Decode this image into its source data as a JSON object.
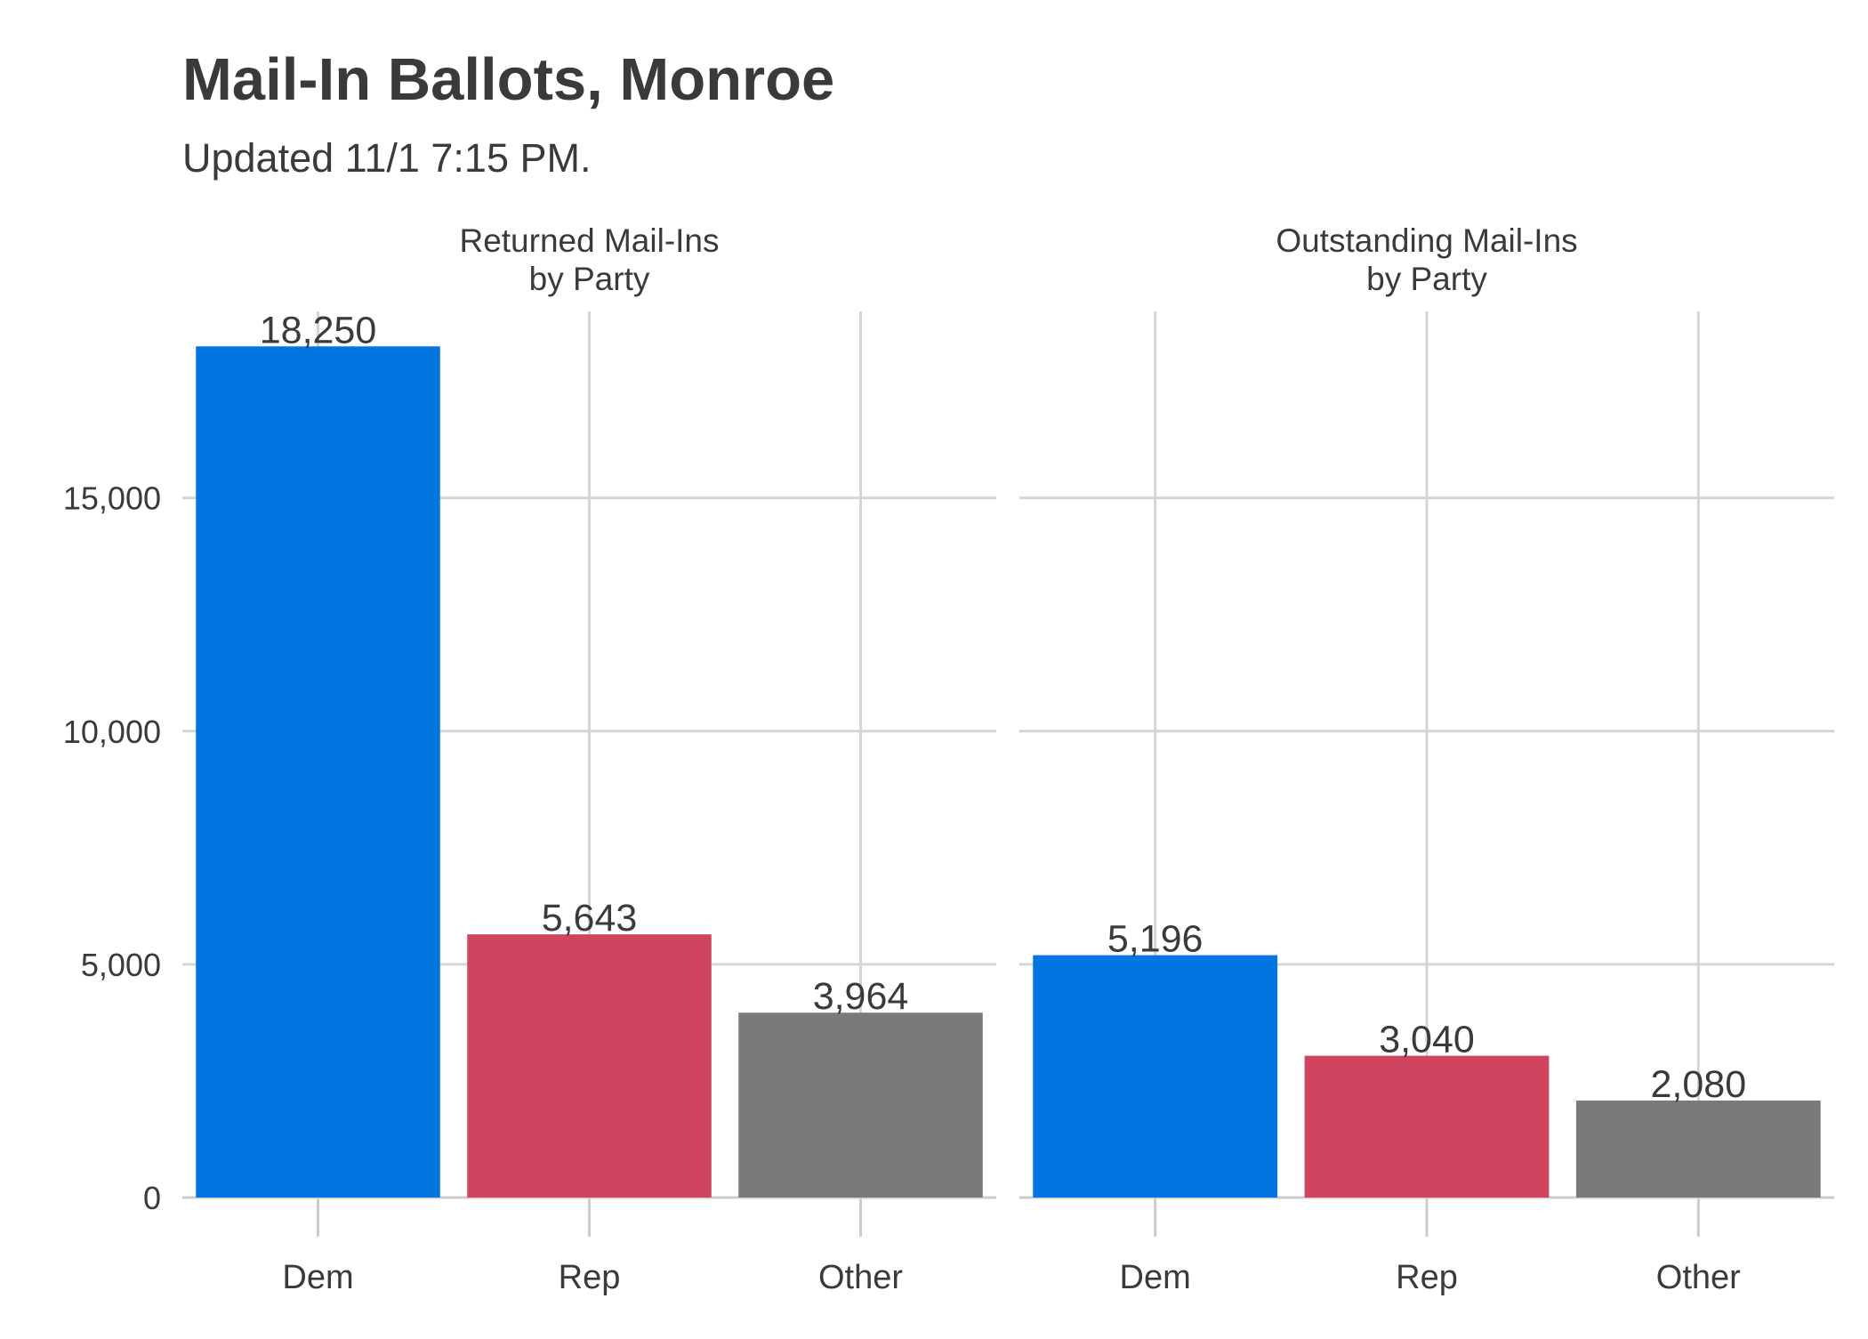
{
  "chart_data": {
    "type": "bar",
    "title": "Mail-In Ballots, Monroe",
    "subtitle": "Updated 11/1 7:15 PM.",
    "ylim": [
      0,
      19000
    ],
    "y_ticks": [
      0,
      5000,
      10000,
      15000
    ],
    "y_tick_labels": [
      "0",
      "5,000",
      "10,000",
      "15,000"
    ],
    "grid": true,
    "categories": [
      "Dem",
      "Rep",
      "Other"
    ],
    "colors": {
      "Dem": "#0275e0",
      "Rep": "#cf445e",
      "Other": "#7a7a7a"
    },
    "panels": [
      {
        "title_lines": [
          "Returned Mail-Ins",
          "by Party"
        ],
        "values": [
          18250,
          5643,
          3964
        ],
        "value_labels": [
          "18,250",
          "5,643",
          "3,964"
        ]
      },
      {
        "title_lines": [
          "Outstanding Mail-Ins",
          "by Party"
        ],
        "values": [
          5196,
          3040,
          2080
        ],
        "value_labels": [
          "5,196",
          "3,040",
          "2,080"
        ]
      }
    ]
  }
}
